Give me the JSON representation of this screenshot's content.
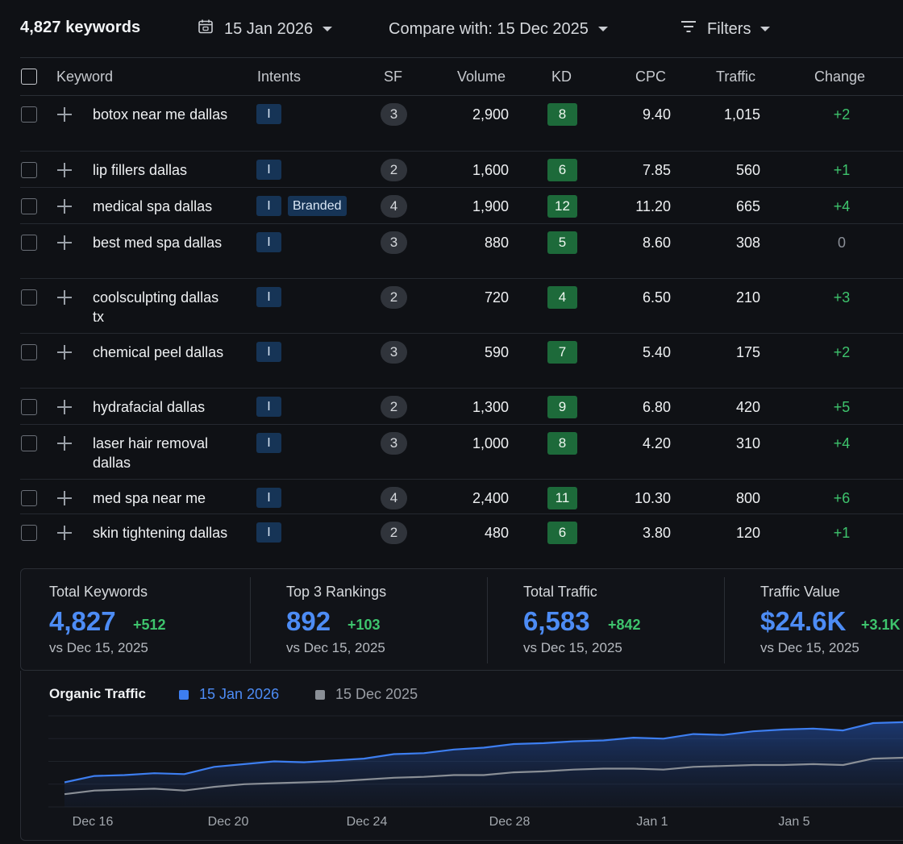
{
  "toolbar": {
    "keyword_count": "4,827 keywords",
    "date": "15 Jan 2026",
    "compare": "Compare with: 15 Dec 2025",
    "filters": "Filters",
    "icons": {
      "date": "calendar-icon",
      "filters": "filter-icon"
    }
  },
  "table": {
    "columns": [
      "Keyword",
      "Intents",
      "SF",
      "Volume",
      "KD",
      "CPC",
      "Traffic",
      "Change"
    ],
    "rows": [
      {
        "keyword": "botox near me dallas",
        "intent": "I",
        "branded": "",
        "sf": "3",
        "volume": "2,900",
        "kd": "8",
        "cpc": "9.40",
        "traffic": "1,015",
        "change": "+2"
      },
      {
        "keyword": "lip fillers dallas",
        "intent": "I",
        "branded": "",
        "sf": "2",
        "volume": "1,600",
        "kd": "6",
        "cpc": "7.85",
        "traffic": "560",
        "change": "+1"
      },
      {
        "keyword": "medical spa dallas",
        "intent": "I",
        "branded": "Branded",
        "sf": "4",
        "volume": "1,900",
        "kd": "12",
        "cpc": "11.20",
        "traffic": "665",
        "change": "+4"
      },
      {
        "keyword": "best med spa dallas",
        "intent": "I",
        "branded": "",
        "sf": "3",
        "volume": "880",
        "kd": "5",
        "cpc": "8.60",
        "traffic": "308",
        "change": "0"
      },
      {
        "keyword": "coolsculpting dallas tx",
        "intent": "I",
        "branded": "",
        "sf": "2",
        "volume": "720",
        "kd": "4",
        "cpc": "6.50",
        "traffic": "210",
        "change": "+3"
      },
      {
        "keyword": "chemical peel dallas",
        "intent": "I",
        "branded": "",
        "sf": "3",
        "volume": "590",
        "kd": "7",
        "cpc": "5.40",
        "traffic": "175",
        "change": "+2"
      },
      {
        "keyword": "hydrafacial dallas",
        "intent": "I",
        "branded": "",
        "sf": "2",
        "volume": "1,300",
        "kd": "9",
        "cpc": "6.80",
        "traffic": "420",
        "change": "+5"
      },
      {
        "keyword": "laser hair removal dallas",
        "intent": "I",
        "branded": "",
        "sf": "3",
        "volume": "1,000",
        "kd": "8",
        "cpc": "4.20",
        "traffic": "310",
        "change": "+4"
      },
      {
        "keyword": "med spa near me",
        "intent": "I",
        "branded": "",
        "sf": "4",
        "volume": "2,400",
        "kd": "11",
        "cpc": "10.30",
        "traffic": "800",
        "change": "+6"
      },
      {
        "keyword": "skin tightening dallas",
        "intent": "I",
        "branded": "",
        "sf": "2",
        "volume": "480",
        "kd": "6",
        "cpc": "3.80",
        "traffic": "120",
        "change": "+1"
      }
    ]
  },
  "stats": [
    {
      "label": "Total Keywords",
      "value": "4,827",
      "delta": "+512",
      "vs": "vs Dec 15, 2025"
    },
    {
      "label": "Top 3 Rankings",
      "value": "892",
      "delta": "+103",
      "vs": "vs Dec 15, 2025"
    },
    {
      "label": "Total Traffic",
      "value": "6,583",
      "delta": "+842",
      "vs": "vs Dec 15, 2025"
    },
    {
      "label": "Traffic Value",
      "value": "$24.6K",
      "delta": "+3.1K",
      "vs": "vs Dec 15, 2025"
    }
  ],
  "colors": {
    "accent": "#4d8cf5",
    "positive": "#3ec46d",
    "kd_easy": "#1d6a3a",
    "intent_badge": "#163456",
    "current_series": "#3d7ef0",
    "previous_series": "#8a8f96"
  },
  "chart_data": {
    "type": "area",
    "title": "Organic Traffic",
    "xlabel": "",
    "ylabel": "",
    "x_tick_labels": [
      "Dec 16",
      "Dec 20",
      "Dec 24",
      "Dec 28",
      "Jan 1",
      "Jan 5"
    ],
    "grid": true,
    "legend_position": "top-left",
    "series": [
      {
        "name": "15 Jan 2026",
        "values": [
          0.27,
          0.34,
          0.35,
          0.37,
          0.36,
          0.44,
          0.47,
          0.5,
          0.49,
          0.51,
          0.53,
          0.58,
          0.59,
          0.63,
          0.65,
          0.69,
          0.7,
          0.72,
          0.73,
          0.76,
          0.75,
          0.8,
          0.79,
          0.83,
          0.85,
          0.86,
          0.84,
          0.92,
          0.93
        ]
      },
      {
        "name": "15 Dec 2025",
        "values": [
          0.14,
          0.18,
          0.19,
          0.2,
          0.18,
          0.22,
          0.25,
          0.26,
          0.27,
          0.28,
          0.3,
          0.32,
          0.33,
          0.35,
          0.35,
          0.38,
          0.39,
          0.41,
          0.42,
          0.42,
          0.41,
          0.44,
          0.45,
          0.46,
          0.46,
          0.47,
          0.46,
          0.53,
          0.54
        ]
      }
    ],
    "ylim": [
      0,
      1
    ]
  }
}
